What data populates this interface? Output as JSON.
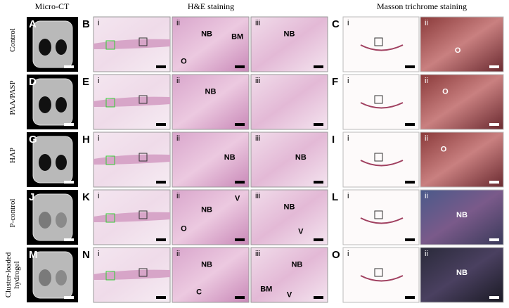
{
  "headers": {
    "micro_ct": "Micro-CT",
    "he": "H&E staining",
    "masson": "Masson trichrome staining"
  },
  "rows": [
    {
      "label": "Control",
      "letters": [
        "A",
        "B",
        "C"
      ],
      "he": [
        {
          "label": "i",
          "annotations": []
        },
        {
          "label": "ii",
          "annotations": [
            "NB",
            "BM",
            "O"
          ]
        },
        {
          "label": "iii",
          "annotations": [
            "NB"
          ]
        }
      ],
      "masson": [
        {
          "label": "i",
          "annotations": []
        },
        {
          "label": "ii",
          "annotations": [
            "O"
          ]
        }
      ]
    },
    {
      "label": "PAA/PASP",
      "letters": [
        "D",
        "E",
        "F"
      ],
      "he": [
        {
          "label": "i",
          "annotations": []
        },
        {
          "label": "ii",
          "annotations": [
            "NB"
          ]
        },
        {
          "label": "iii",
          "annotations": []
        }
      ],
      "masson": [
        {
          "label": "i",
          "annotations": []
        },
        {
          "label": "ii",
          "annotations": [
            "O"
          ]
        }
      ]
    },
    {
      "label": "HAP",
      "letters": [
        "G",
        "H",
        "I"
      ],
      "he": [
        {
          "label": "i",
          "annotations": []
        },
        {
          "label": "ii",
          "annotations": [
            "NB"
          ]
        },
        {
          "label": "iii",
          "annotations": [
            "NB"
          ]
        }
      ],
      "masson": [
        {
          "label": "i",
          "annotations": []
        },
        {
          "label": "ii",
          "annotations": [
            "O"
          ]
        }
      ]
    },
    {
      "label": "P-control",
      "letters": [
        "J",
        "K",
        "L"
      ],
      "he": [
        {
          "label": "i",
          "annotations": []
        },
        {
          "label": "ii",
          "annotations": [
            "NB",
            "V",
            "O"
          ]
        },
        {
          "label": "iii",
          "annotations": [
            "NB",
            "V"
          ]
        }
      ],
      "masson": [
        {
          "label": "i",
          "annotations": []
        },
        {
          "label": "ii",
          "annotations": [
            "NB"
          ]
        }
      ]
    },
    {
      "label": "Cluster-loaded hydrogel",
      "letters": [
        "M",
        "N",
        "O"
      ],
      "he": [
        {
          "label": "i",
          "annotations": []
        },
        {
          "label": "ii",
          "annotations": [
            "NB",
            "C"
          ]
        },
        {
          "label": "iii",
          "annotations": [
            "NB",
            "BM",
            "V"
          ]
        }
      ],
      "masson": [
        {
          "label": "i",
          "annotations": []
        },
        {
          "label": "ii",
          "annotations": [
            "NB"
          ]
        }
      ]
    }
  ]
}
